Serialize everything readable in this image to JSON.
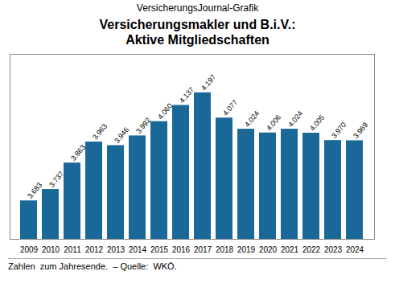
{
  "chart_data": {
    "type": "bar",
    "subtitle": "VersicherungsJournal-Grafik",
    "title": "Versicherungsmakler und B.i.V.:\nAktive Mitgliedschaften",
    "annotations": [
      "Zahlen  zum Jahresende.  – Quelle:  WKÖ."
    ],
    "categories": [
      "2009",
      "2010",
      "2011",
      "2012",
      "2013",
      "2014",
      "2015",
      "2016",
      "2017",
      "2018",
      "2019",
      "2020",
      "2021",
      "2022",
      "2023",
      "2024"
    ],
    "values": [
      3683,
      3737,
      3863,
      3963,
      3946,
      3992,
      4060,
      4137,
      4197,
      4077,
      4024,
      4006,
      4024,
      4005,
      3970,
      3969
    ],
    "value_labels": [
      "3.683",
      "3.737",
      "3.863",
      "3.963",
      "3.946",
      "3.992",
      "4.060",
      "4.137",
      "4.197",
      "4.077",
      "4.024",
      "4.006",
      "4.024",
      "4.005",
      "3.970",
      "3.969"
    ],
    "color": "#1a6898",
    "ylim": [
      3500,
      4380
    ],
    "data_labels": true,
    "tick_labels": "x",
    "grid": false
  }
}
